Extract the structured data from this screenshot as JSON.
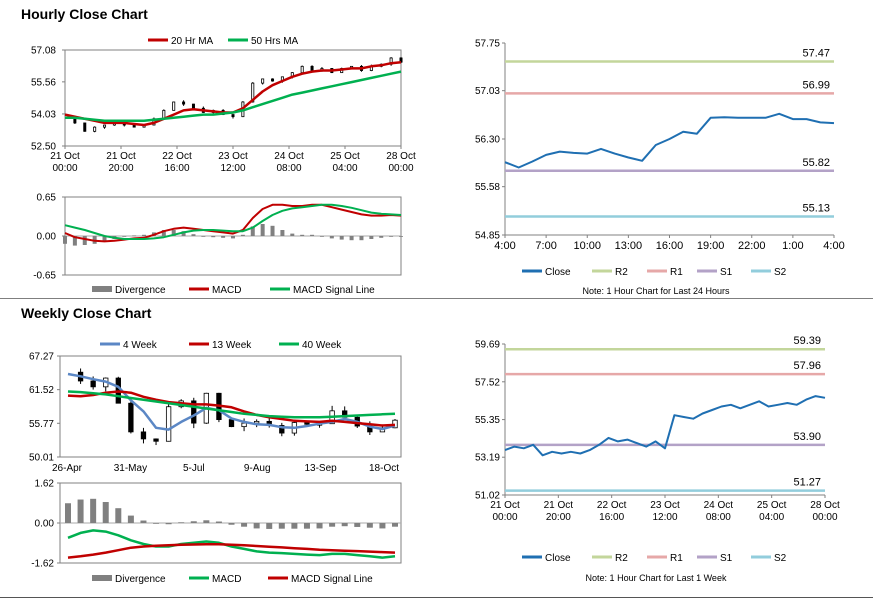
{
  "sections": {
    "hourly_title": "Hourly Close Chart",
    "weekly_title": "Weekly Close Chart"
  },
  "colors": {
    "close": "#1f6fb2",
    "ma_red": "#c00000",
    "ma_green": "#00b050",
    "r2": "#c3d69b",
    "r1": "#e6a8a8",
    "s1": "#b3a2c7",
    "s2": "#92cddc",
    "divergence": "#808080",
    "grid": "#b0b0b0",
    "blue4": "#5b87c5"
  },
  "chart_data": [
    {
      "id": "hourly_candles",
      "type": "line",
      "title": "",
      "legend": [
        "20 Hr MA",
        "50 Hrs MA"
      ],
      "y_ticks": [
        "57.08",
        "55.56",
        "54.03",
        "52.50"
      ],
      "ylim": [
        52.5,
        57.08
      ],
      "x_ticks": [
        [
          "21 Oct",
          "00:00"
        ],
        [
          "21 Oct",
          "20:00"
        ],
        [
          "22 Oct",
          "16:00"
        ],
        [
          "23 Oct",
          "12:00"
        ],
        [
          "24 Oct",
          "08:00"
        ],
        [
          "25 Oct",
          "04:00"
        ],
        [
          "28 Oct",
          "00:00"
        ]
      ],
      "series": [
        {
          "name": "Close",
          "values": [
            53.9,
            53.6,
            53.2,
            53.4,
            53.5,
            53.6,
            53.5,
            53.4,
            53.5,
            53.8,
            54.2,
            54.6,
            54.5,
            54.3,
            54.1,
            54.2,
            54.0,
            53.9,
            54.6,
            55.5,
            55.7,
            55.6,
            55.8,
            56.0,
            56.3,
            56.1,
            56.2,
            56.0,
            56.2,
            56.3,
            56.1,
            56.3,
            56.4,
            56.7,
            56.5
          ]
        },
        {
          "name": "20 Hr MA",
          "values": [
            54.0,
            53.9,
            53.8,
            53.7,
            53.6,
            53.6,
            53.6,
            53.55,
            53.5,
            53.6,
            53.8,
            54.0,
            54.2,
            54.25,
            54.2,
            54.15,
            54.1,
            54.1,
            54.3,
            54.7,
            55.1,
            55.4,
            55.6,
            55.8,
            55.95,
            56.05,
            56.1,
            56.1,
            56.15,
            56.2,
            56.2,
            56.3,
            56.35,
            56.45,
            56.5
          ]
        },
        {
          "name": "50 Hrs MA",
          "values": [
            53.85,
            53.85,
            53.8,
            53.75,
            53.7,
            53.7,
            53.7,
            53.7,
            53.7,
            53.75,
            53.8,
            53.85,
            53.9,
            53.95,
            54.0,
            54.0,
            54.05,
            54.1,
            54.2,
            54.35,
            54.5,
            54.65,
            54.8,
            54.95,
            55.05,
            55.15,
            55.25,
            55.35,
            55.45,
            55.55,
            55.65,
            55.75,
            55.85,
            55.95,
            56.05
          ]
        }
      ]
    },
    {
      "id": "hourly_macd",
      "type": "line",
      "y_ticks": [
        "0.65",
        "0.00",
        "-0.65"
      ],
      "ylim": [
        -0.65,
        0.65
      ],
      "legend": [
        "Divergence",
        "MACD",
        "MACD Signal Line"
      ],
      "series": [
        {
          "name": "MACD",
          "values": [
            0.05,
            -0.02,
            -0.05,
            -0.08,
            -0.09,
            -0.08,
            -0.06,
            -0.04,
            -0.03,
            0.02,
            0.08,
            0.12,
            0.14,
            0.12,
            0.1,
            0.08,
            0.06,
            0.04,
            0.1,
            0.3,
            0.45,
            0.52,
            0.52,
            0.5,
            0.5,
            0.52,
            0.52,
            0.48,
            0.44,
            0.4,
            0.36,
            0.34,
            0.34,
            0.35,
            0.34
          ]
        },
        {
          "name": "MACD Signal Line",
          "values": [
            0.18,
            0.14,
            0.1,
            0.05,
            0.0,
            -0.03,
            -0.05,
            -0.05,
            -0.05,
            -0.04,
            -0.02,
            0.02,
            0.06,
            0.09,
            0.1,
            0.1,
            0.09,
            0.08,
            0.08,
            0.14,
            0.25,
            0.35,
            0.42,
            0.46,
            0.48,
            0.5,
            0.52,
            0.52,
            0.5,
            0.47,
            0.43,
            0.39,
            0.37,
            0.36,
            0.35
          ]
        }
      ]
    },
    {
      "id": "hourly_pivot",
      "type": "line",
      "y_ticks": [
        "57.75",
        "57.03",
        "56.30",
        "55.58",
        "54.85"
      ],
      "ylim": [
        54.85,
        57.75
      ],
      "x_ticks": [
        "4:00",
        "7:00",
        "10:00",
        "13:00",
        "16:00",
        "19:00",
        "22:00",
        "1:00",
        "4:00"
      ],
      "levels": [
        {
          "name": "R2",
          "value": 57.47,
          "label": "57.47"
        },
        {
          "name": "R1",
          "value": 56.99,
          "label": "56.99"
        },
        {
          "name": "S1",
          "value": 55.82,
          "label": "55.82"
        },
        {
          "name": "S2",
          "value": 55.13,
          "label": "55.13"
        }
      ],
      "legend": [
        "Close",
        "R2",
        "R1",
        "S1",
        "S2"
      ],
      "note": "Note: 1 Hour Chart for Last 24 Hours",
      "series": [
        {
          "name": "Close",
          "values": [
            55.95,
            55.87,
            55.96,
            56.06,
            56.11,
            56.09,
            56.08,
            56.15,
            56.08,
            56.02,
            55.97,
            56.21,
            56.3,
            56.41,
            56.38,
            56.62,
            56.63,
            56.62,
            56.62,
            56.62,
            56.68,
            56.6,
            56.6,
            56.55,
            56.54
          ]
        }
      ]
    },
    {
      "id": "weekly_candles",
      "type": "line",
      "legend": [
        "4 Week",
        "13 Week",
        "40 Week"
      ],
      "y_ticks": [
        "67.27",
        "61.52",
        "55.77",
        "50.01"
      ],
      "ylim": [
        50.01,
        67.27
      ],
      "x_ticks": [
        "26-Apr",
        "31-May",
        "5-Jul",
        "9-Aug",
        "13-Sep",
        "18-Oct"
      ],
      "series": [
        {
          "name": "Close",
          "values": [
            64.5,
            63.0,
            62.0,
            63.5,
            59.2,
            54.3,
            53.1,
            52.7,
            58.6,
            59.6,
            55.8,
            60.9,
            56.4,
            55.2,
            55.8,
            56.1,
            55.4,
            54.1,
            55.9,
            55.6,
            55.7,
            57.9,
            56.8,
            55.3,
            54.3,
            55.0,
            56.3
          ]
        },
        {
          "name": "4 Week",
          "values": [
            64.2,
            63.8,
            63.3,
            62.9,
            62.0,
            59.7,
            57.8,
            55.0,
            54.7,
            56.0,
            57.1,
            58.4,
            58.0,
            56.6,
            56.0,
            55.6,
            55.5,
            55.1,
            55.0,
            55.3,
            55.7,
            56.0,
            56.5,
            56.0,
            55.2,
            54.8,
            55.4
          ]
        },
        {
          "name": "13 Week",
          "values": [
            60.5,
            60.4,
            60.6,
            61.0,
            61.2,
            61.0,
            60.3,
            59.8,
            59.4,
            59.2,
            59.0,
            59.0,
            58.8,
            58.5,
            57.8,
            57.2,
            56.8,
            56.5,
            56.2,
            56.1,
            56.0,
            56.2,
            56.0,
            55.8,
            55.6,
            55.4,
            55.5
          ]
        },
        {
          "name": "40 Week",
          "values": [
            61.2,
            61.1,
            60.9,
            60.7,
            60.4,
            60.1,
            59.8,
            59.5,
            59.2,
            58.9,
            58.6,
            58.3,
            58.0,
            57.7,
            57.4,
            57.2,
            57.0,
            56.9,
            56.8,
            56.8,
            56.8,
            56.9,
            57.0,
            57.1,
            57.2,
            57.3,
            57.4
          ]
        }
      ]
    },
    {
      "id": "weekly_macd",
      "type": "line",
      "y_ticks": [
        "1.62",
        "0.00",
        "-1.62"
      ],
      "ylim": [
        -1.62,
        1.62
      ],
      "legend": [
        "Divergence",
        "MACD",
        "MACD Signal Line"
      ],
      "series": [
        {
          "name": "MACD",
          "values": [
            -0.6,
            -0.4,
            -0.3,
            -0.35,
            -0.5,
            -0.7,
            -0.85,
            -0.95,
            -0.95,
            -0.85,
            -0.8,
            -0.75,
            -0.8,
            -0.95,
            -1.05,
            -1.15,
            -1.2,
            -1.22,
            -1.25,
            -1.28,
            -1.3,
            -1.25,
            -1.25,
            -1.3,
            -1.35,
            -1.4,
            -1.35
          ]
        },
        {
          "name": "MACD Signal Line",
          "values": [
            -1.4,
            -1.35,
            -1.28,
            -1.2,
            -1.1,
            -1.0,
            -0.95,
            -0.92,
            -0.9,
            -0.88,
            -0.87,
            -0.86,
            -0.86,
            -0.88,
            -0.9,
            -0.93,
            -0.96,
            -0.99,
            -1.02,
            -1.05,
            -1.08,
            -1.1,
            -1.12,
            -1.14,
            -1.16,
            -1.18,
            -1.2
          ]
        }
      ]
    },
    {
      "id": "weekly_pivot",
      "type": "line",
      "y_ticks": [
        "59.69",
        "57.52",
        "55.35",
        "53.19",
        "51.02"
      ],
      "ylim": [
        51.02,
        59.69
      ],
      "x_ticks": [
        [
          "21 Oct",
          "00:00"
        ],
        [
          "21 Oct",
          "20:00"
        ],
        [
          "22 Oct",
          "16:00"
        ],
        [
          "23 Oct",
          "12:00"
        ],
        [
          "24 Oct",
          "08:00"
        ],
        [
          "25 Oct",
          "04:00"
        ],
        [
          "28 Oct",
          "00:00"
        ]
      ],
      "levels": [
        {
          "name": "R2",
          "value": 59.39,
          "label": "59.39"
        },
        {
          "name": "R1",
          "value": 57.96,
          "label": "57.96"
        },
        {
          "name": "S1",
          "value": 53.9,
          "label": "53.90"
        },
        {
          "name": "S2",
          "value": 51.27,
          "label": "51.27"
        }
      ],
      "legend": [
        "Close",
        "R2",
        "R1",
        "S1",
        "S2"
      ],
      "note": "Note: 1 Hour Chart for Last 1 Week",
      "series": [
        {
          "name": "Close",
          "values": [
            53.6,
            53.8,
            53.7,
            53.9,
            53.3,
            53.5,
            53.4,
            53.5,
            53.4,
            53.6,
            53.9,
            54.3,
            54.1,
            54.2,
            54.0,
            53.8,
            54.1,
            53.7,
            55.6,
            55.5,
            55.4,
            55.7,
            55.9,
            56.1,
            56.2,
            56.0,
            56.2,
            56.4,
            56.1,
            56.2,
            56.3,
            56.2,
            56.5,
            56.7,
            56.6
          ]
        }
      ]
    }
  ]
}
